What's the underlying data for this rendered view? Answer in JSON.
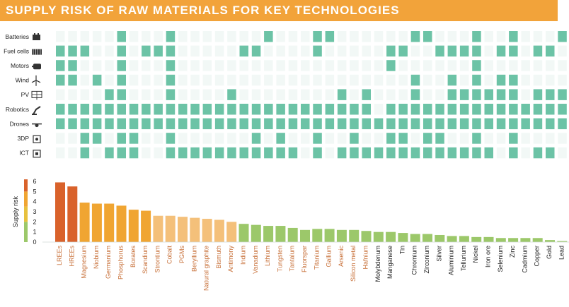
{
  "title": "SUPPLY RISK OF RAW MATERIALS FOR KEY TECHNOLOGIES",
  "colors": {
    "title_bg": "#f2a33a",
    "cell_on": "#6cc3a6",
    "cell_off": "#f2f8f6",
    "red": "#d9622b",
    "orange": "#f0a532",
    "light_orange": "#f4c07a",
    "green": "#9cc86a",
    "dark_text": "#222222",
    "orange_text": "#c8713a"
  },
  "matrix": {
    "rows": [
      {
        "label": "Batteries",
        "icon": "battery-icon"
      },
      {
        "label": "Fuel cells",
        "icon": "fuel-cell-icon"
      },
      {
        "label": "Motors",
        "icon": "motor-icon"
      },
      {
        "label": "Wind",
        "icon": "wind-turbine-icon"
      },
      {
        "label": "PV",
        "icon": "solar-panel-icon"
      },
      {
        "label": "Robotics",
        "icon": "robot-arm-icon"
      },
      {
        "label": "Drones",
        "icon": "drone-icon"
      },
      {
        "label": "3DP",
        "icon": "3d-printer-icon"
      },
      {
        "label": "ICT",
        "icon": "chip-icon"
      }
    ],
    "cells": [
      [
        0,
        0,
        0,
        0,
        0,
        1,
        0,
        0,
        0,
        1,
        0,
        0,
        0,
        0,
        0,
        0,
        0,
        1,
        0,
        0,
        0,
        1,
        1,
        0,
        0,
        0,
        0,
        0,
        0,
        1,
        1,
        0,
        0,
        0,
        1,
        0,
        0,
        1,
        0,
        0,
        0,
        1
      ],
      [
        1,
        1,
        1,
        0,
        0,
        1,
        0,
        1,
        1,
        1,
        0,
        0,
        0,
        0,
        0,
        1,
        1,
        0,
        0,
        0,
        0,
        1,
        0,
        0,
        0,
        0,
        0,
        1,
        1,
        0,
        0,
        1,
        1,
        1,
        1,
        0,
        1,
        1,
        0,
        1,
        1,
        0
      ],
      [
        1,
        1,
        0,
        0,
        0,
        1,
        0,
        0,
        0,
        1,
        0,
        0,
        0,
        0,
        0,
        0,
        0,
        0,
        0,
        0,
        0,
        0,
        0,
        0,
        0,
        0,
        0,
        1,
        0,
        0,
        0,
        0,
        0,
        0,
        1,
        0,
        0,
        0,
        0,
        0,
        0,
        0
      ],
      [
        1,
        1,
        0,
        1,
        0,
        1,
        0,
        0,
        0,
        1,
        0,
        0,
        0,
        0,
        0,
        0,
        0,
        0,
        0,
        0,
        0,
        0,
        0,
        0,
        0,
        0,
        0,
        0,
        0,
        1,
        0,
        0,
        1,
        0,
        1,
        0,
        1,
        1,
        0,
        0,
        0,
        0
      ],
      [
        0,
        0,
        0,
        0,
        1,
        1,
        0,
        0,
        0,
        1,
        0,
        0,
        0,
        0,
        1,
        0,
        0,
        0,
        0,
        0,
        0,
        0,
        0,
        1,
        0,
        1,
        0,
        0,
        0,
        1,
        0,
        0,
        1,
        1,
        1,
        1,
        1,
        1,
        0,
        1,
        1,
        1
      ],
      [
        1,
        1,
        1,
        1,
        1,
        1,
        1,
        1,
        1,
        1,
        1,
        1,
        1,
        1,
        1,
        1,
        1,
        1,
        1,
        1,
        1,
        1,
        1,
        1,
        1,
        1,
        0,
        1,
        1,
        1,
        1,
        1,
        1,
        1,
        1,
        1,
        1,
        1,
        1,
        1,
        1,
        1
      ],
      [
        1,
        1,
        1,
        1,
        1,
        1,
        1,
        1,
        1,
        1,
        1,
        1,
        1,
        1,
        1,
        1,
        1,
        1,
        1,
        1,
        1,
        1,
        1,
        1,
        1,
        1,
        1,
        1,
        1,
        1,
        1,
        1,
        1,
        1,
        1,
        1,
        1,
        1,
        1,
        1,
        1,
        1
      ],
      [
        0,
        0,
        1,
        1,
        0,
        1,
        1,
        0,
        0,
        1,
        0,
        0,
        0,
        0,
        0,
        0,
        1,
        0,
        1,
        0,
        0,
        1,
        0,
        0,
        1,
        0,
        0,
        1,
        1,
        0,
        1,
        1,
        0,
        0,
        1,
        0,
        0,
        1,
        0,
        0,
        0,
        0
      ],
      [
        0,
        0,
        1,
        0,
        1,
        1,
        1,
        0,
        0,
        1,
        1,
        1,
        1,
        1,
        1,
        1,
        1,
        1,
        1,
        1,
        0,
        1,
        0,
        1,
        1,
        1,
        1,
        1,
        1,
        1,
        1,
        1,
        1,
        1,
        1,
        1,
        0,
        1,
        0,
        1,
        1,
        0
      ]
    ]
  },
  "chart_data": {
    "type": "bar",
    "categories": [
      "LREEs",
      "HREEs",
      "Magnesium",
      "Niobium",
      "Germanium",
      "Phosphorus",
      "Borates",
      "Scandium",
      "Strontium",
      "Cobalt",
      "PGMs",
      "Beryllium",
      "Natural graphite",
      "Bismuth",
      "Antimony",
      "Indium",
      "Vanadium",
      "Lithium",
      "Tungsten",
      "Tantalum",
      "Fluorspar",
      "Titanium",
      "Gallium",
      "Arsenic",
      "Silicon metal",
      "Hafnium",
      "Molybdenum",
      "Manganese",
      "Tin",
      "Chromium",
      "Zirconium",
      "Silver",
      "Aluminium",
      "Tellurium",
      "Nickel",
      "Iron ore",
      "Selenium",
      "Zinc",
      "Cadmium",
      "Copper",
      "Gold",
      "Lead"
    ],
    "values": [
      5.9,
      5.5,
      3.9,
      3.8,
      3.8,
      3.6,
      3.2,
      3.1,
      2.6,
      2.6,
      2.5,
      2.4,
      2.3,
      2.2,
      2.0,
      1.8,
      1.7,
      1.6,
      1.6,
      1.4,
      1.2,
      1.3,
      1.3,
      1.2,
      1.2,
      1.1,
      1.0,
      1.0,
      0.9,
      0.8,
      0.8,
      0.7,
      0.6,
      0.6,
      0.5,
      0.5,
      0.4,
      0.4,
      0.4,
      0.4,
      0.2,
      0.1
    ],
    "label_colors": [
      "orange",
      "orange",
      "orange",
      "orange",
      "orange",
      "orange",
      "orange",
      "orange",
      "orange",
      "orange",
      "orange",
      "orange",
      "orange",
      "orange",
      "orange",
      "orange",
      "orange",
      "orange",
      "orange",
      "orange",
      "orange",
      "orange",
      "orange",
      "orange",
      "orange",
      "orange",
      "dark",
      "dark",
      "dark",
      "dark",
      "dark",
      "dark",
      "dark",
      "dark",
      "dark",
      "dark",
      "dark",
      "dark",
      "dark",
      "dark",
      "dark",
      "dark"
    ],
    "ylabel": "Supply risk",
    "ylim": [
      0,
      6.5
    ],
    "yticks": [
      0,
      1,
      2,
      3,
      4,
      5,
      6
    ],
    "xlabel": "",
    "grid": false
  }
}
